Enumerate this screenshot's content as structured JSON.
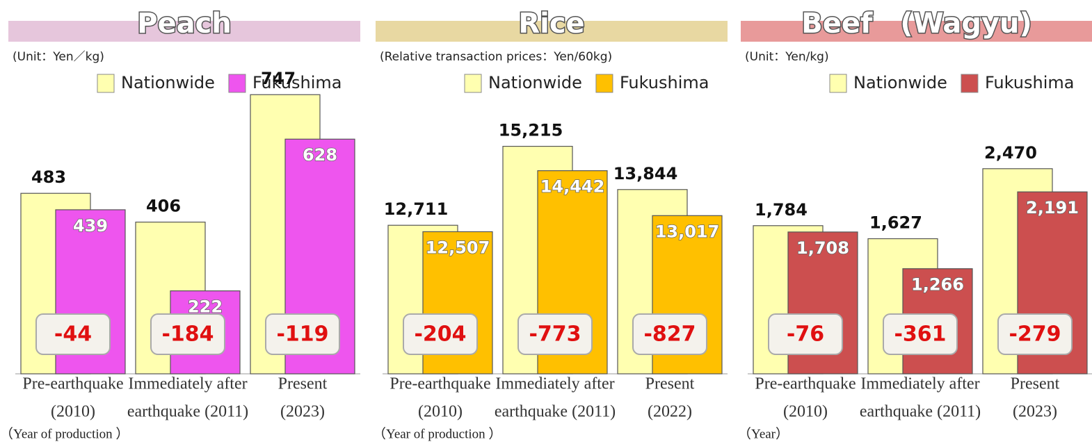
{
  "chart_data": [
    {
      "type": "bar",
      "title": "Peach",
      "title_color": "#e6c6dc",
      "subtitle": "(Unit：Yen／kg)",
      "categories": [
        [
          "Pre-earthquake",
          "(2010)"
        ],
        [
          "Immediately after",
          "earthquake (2011)"
        ],
        [
          "Present",
          "(2023)"
        ]
      ],
      "series": [
        {
          "name": "Nationwide",
          "color": "#ffffb0",
          "values": [
            483,
            406,
            747
          ]
        },
        {
          "name": "Fukushima",
          "color": "#ee55ee",
          "values": [
            439,
            222,
            628
          ]
        }
      ],
      "differences": [
        -44,
        -184,
        -119
      ],
      "x_note": "（Year of production ）",
      "ylim": [
        0,
        740
      ]
    },
    {
      "type": "bar",
      "title": "Rice",
      "title_color": "#e8d8a2",
      "subtitle": "(Relative transaction prices：Yen/60kg)",
      "categories": [
        [
          "Pre-earthquake",
          "(2010)"
        ],
        [
          "Immediately after",
          "earthquake (2011)"
        ],
        [
          "Present",
          "(2022)"
        ]
      ],
      "series": [
        {
          "name": "Nationwide",
          "color": "#ffffb0",
          "values": [
            12711,
            15215,
            13844
          ],
          "value_labels": [
            "12,711",
            "15,215",
            "13,844"
          ]
        },
        {
          "name": "Fukushima",
          "color": "#ffc000",
          "values": [
            12507,
            14442,
            13017
          ],
          "value_labels": [
            "12,507",
            "14,442",
            "13,017"
          ]
        }
      ],
      "differences": [
        -204,
        -773,
        -827
      ],
      "x_note": "（Year of production ）",
      "ylim": [
        8000,
        16770
      ]
    },
    {
      "type": "bar",
      "title": "Beef　(Wagyu)",
      "title_color": "#e89a9a",
      "subtitle": "(Unit：Yen/kg)",
      "categories": [
        [
          "Pre-earthquake",
          "(2010)"
        ],
        [
          "Immediately after",
          "earthquake (2011)"
        ],
        [
          "Present",
          "(2023)"
        ]
      ],
      "series": [
        {
          "name": "Nationwide",
          "color": "#ffffb0",
          "values": [
            1784,
            1627,
            2470
          ],
          "value_labels": [
            "1,784",
            "1,627",
            "2,470"
          ]
        },
        {
          "name": "Fukushima",
          "color": "#cc4f4f",
          "values": [
            1708,
            1266,
            2191
          ],
          "value_labels": [
            "1,708",
            "1,266",
            "2,191"
          ]
        }
      ],
      "differences": [
        -76,
        -361,
        -279
      ],
      "x_note": "（Year）",
      "ylim": [
        0,
        3330
      ]
    }
  ]
}
